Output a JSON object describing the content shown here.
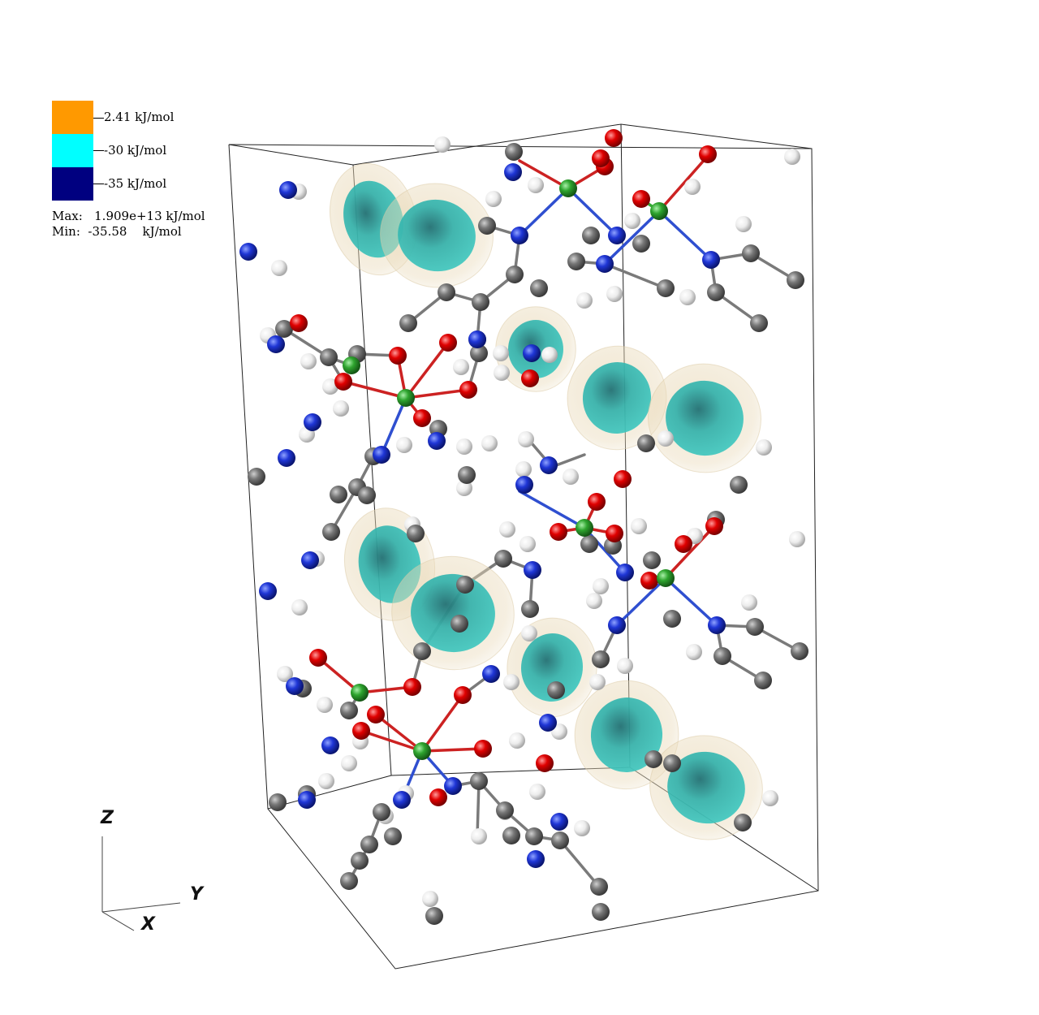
{
  "legend": {
    "entries": [
      {
        "label": "2.41 kJ/mol",
        "color": "#ff9900"
      },
      {
        "label": "-30 kJ/mol",
        "color": "#00ffff"
      },
      {
        "label": "-35 kJ/mol",
        "color": "#000080"
      }
    ],
    "max_label": "Max:",
    "max_value": "1.909e+13 kJ/mol",
    "min_label": "Min:",
    "min_value": "-35.58    kJ/mol"
  },
  "axes": {
    "z": "Z",
    "y": "Y",
    "x": "X"
  },
  "colors": {
    "oxygen": "#dd0000",
    "nitrogen": "#1a2ecc",
    "carbon": "#6e6e6e",
    "hydrogen": "#f2f2f2",
    "metal": "#33aa33",
    "isosurface_inner": "#2aa9a4",
    "isosurface_outer": "#e9d4ad"
  }
}
